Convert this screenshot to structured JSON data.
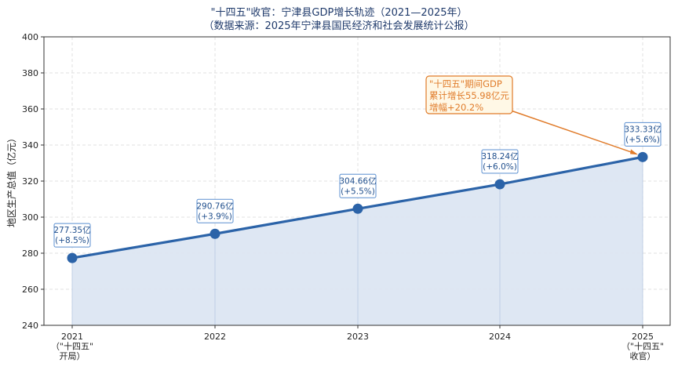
{
  "chart_data": {
    "type": "line",
    "title": "\"十四五\"收官：宁津县GDP增长轨迹（2021—2025年）",
    "subtitle": "（数据来源：2025年宁津县国民经济和社会发展统计公报）",
    "ylabel": "地区生产总值（亿元）",
    "xlabel": "",
    "ylim": [
      240,
      400
    ],
    "yticks": [
      "240",
      "260",
      "280",
      "300",
      "320",
      "340",
      "360",
      "380",
      "400"
    ],
    "grid": true,
    "x": [
      2021,
      2022,
      2023,
      2024,
      2025
    ],
    "x_tick_labels": [
      [
        "2021",
        "（\"十四五\"",
        "开局）"
      ],
      [
        "2022"
      ],
      [
        "2023"
      ],
      [
        "2024"
      ],
      [
        "2025",
        "（\"十四五\"",
        "收官）"
      ]
    ],
    "series": [
      {
        "values": [
          277.35,
          290.76,
          304.66,
          318.24,
          333.33
        ],
        "data_labels": [
          [
            "277.35亿",
            "(+8.5%)"
          ],
          [
            "290.76亿",
            "(+3.9%)"
          ],
          [
            "304.66亿",
            "(+5.5%)"
          ],
          [
            "318.24亿",
            "(+6.0%)"
          ],
          [
            "333.33亿",
            "(+5.6%)"
          ]
        ]
      }
    ],
    "annotation": {
      "lines": [
        "\"十四五\"期间GDP",
        "累计增长55.98亿元",
        "增幅+20.2%"
      ],
      "points_to": 2025
    },
    "colors": {
      "line": "#2b63a8",
      "fill": "#dce6f2",
      "annotation": "#e07b2a",
      "annotation_bg": "#fff8e6",
      "label_border": "#5b8fd0"
    }
  }
}
